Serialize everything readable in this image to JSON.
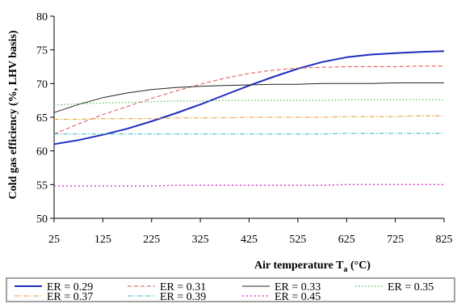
{
  "chart_data": {
    "type": "line",
    "title": "",
    "xlabel": "Air temperature T",
    "xlabel_sub": "a",
    "xlabel_unit": " (°C)",
    "ylabel": "Cold gas efficiency (%, LHV basis)",
    "xlim": [
      25,
      825
    ],
    "ylim": [
      50,
      80
    ],
    "xticks": [
      25,
      125,
      225,
      325,
      425,
      525,
      625,
      725,
      825
    ],
    "yticks": [
      50,
      55,
      60,
      65,
      70,
      75,
      80
    ],
    "grid": false,
    "legend_position": "bottom",
    "x": [
      25,
      75,
      125,
      175,
      225,
      275,
      325,
      375,
      425,
      475,
      525,
      575,
      625,
      675,
      725,
      775,
      825
    ],
    "series": [
      {
        "name": "ER = 0.29",
        "color": "#1f2dbf",
        "dash": "solid",
        "width": 2,
        "values": [
          61.0,
          61.6,
          62.4,
          63.3,
          64.4,
          65.6,
          66.9,
          68.3,
          69.7,
          71.0,
          72.2,
          73.2,
          73.9,
          74.3,
          74.5,
          74.7,
          74.8
        ]
      },
      {
        "name": "ER = 0.31",
        "color": "#e24b4b",
        "dash": "5,3",
        "width": 1,
        "values": [
          62.5,
          64.0,
          65.4,
          66.6,
          67.8,
          68.9,
          69.9,
          70.8,
          71.5,
          72.0,
          72.3,
          72.4,
          72.5,
          72.5,
          72.5,
          72.6,
          72.6
        ]
      },
      {
        "name": "ER = 0.33",
        "color": "#222222",
        "dash": "solid",
        "width": 1,
        "values": [
          65.7,
          66.9,
          67.9,
          68.6,
          69.1,
          69.4,
          69.6,
          69.7,
          69.8,
          69.9,
          69.9,
          70.0,
          70.0,
          70.0,
          70.1,
          70.1,
          70.1
        ]
      },
      {
        "name": "ER = 0.35",
        "color": "#5cb85c",
        "dash": "1.5,2.5",
        "width": 1.2,
        "values": [
          66.8,
          67.0,
          67.1,
          67.2,
          67.3,
          67.4,
          67.4,
          67.5,
          67.5,
          67.5,
          67.5,
          67.5,
          67.6,
          67.6,
          67.6,
          67.6,
          67.6
        ]
      },
      {
        "name": "ER = 0.37",
        "color": "#e69a2e",
        "dash": "6,2,1.5,2",
        "width": 1,
        "values": [
          64.7,
          64.7,
          64.8,
          64.8,
          64.8,
          64.9,
          64.9,
          64.9,
          65.0,
          65.0,
          65.0,
          65.0,
          65.1,
          65.1,
          65.1,
          65.2,
          65.2
        ]
      },
      {
        "name": "ER = 0.39",
        "color": "#33b7c9",
        "dash": "6,2,1.5,2",
        "width": 1,
        "values": [
          62.5,
          62.5,
          62.5,
          62.5,
          62.5,
          62.5,
          62.5,
          62.5,
          62.5,
          62.5,
          62.5,
          62.5,
          62.6,
          62.6,
          62.6,
          62.6,
          62.6
        ]
      },
      {
        "name": "ER = 0.45",
        "color": "#e03fd0",
        "dash": "2,3",
        "width": 1.5,
        "values": [
          54.8,
          54.8,
          54.8,
          54.8,
          54.8,
          54.9,
          54.9,
          54.9,
          54.9,
          54.9,
          54.9,
          54.9,
          55.0,
          55.0,
          55.0,
          55.0,
          55.0
        ]
      }
    ]
  }
}
